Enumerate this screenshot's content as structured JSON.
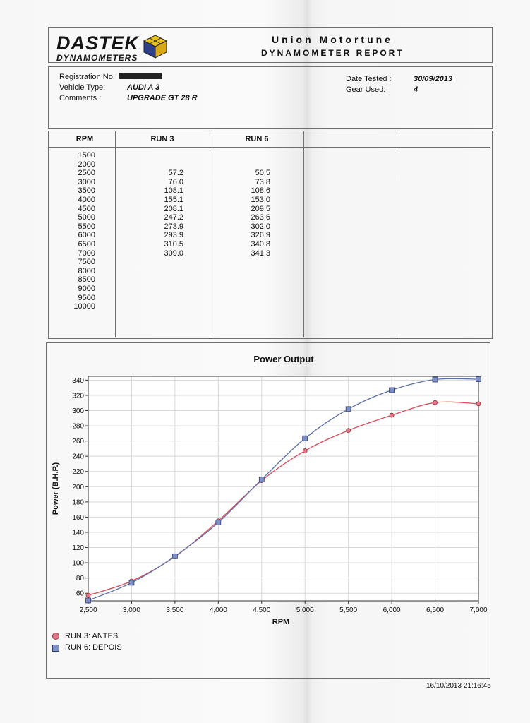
{
  "header": {
    "logo_main": "DASTEK",
    "logo_sub": "DYNAMOMETERS",
    "company": "Union Motortune",
    "report_title": "DYNAMOMETER REPORT"
  },
  "details": {
    "registration_label": "Registration No.",
    "vehicle_label": "Vehicle Type:",
    "vehicle_value": "AUDI A 3",
    "comments_label": "Comments :",
    "comments_value": "UPGRADE GT 28 R",
    "date_label": "Date Tested :",
    "date_value": "30/09/2013",
    "gear_label": "Gear Used:",
    "gear_value": "4"
  },
  "table": {
    "headers": [
      "RPM",
      "RUN 3",
      "RUN 6"
    ],
    "rpm": [
      "1500",
      "2000",
      "2500",
      "3000",
      "3500",
      "4000",
      "4500",
      "5000",
      "5500",
      "6000",
      "6500",
      "7000",
      "7500",
      "8000",
      "8500",
      "9000",
      "9500",
      "10000"
    ],
    "run3": [
      "",
      "",
      "57.2",
      "76.0",
      "108.1",
      "155.1",
      "208.1",
      "247.2",
      "273.9",
      "293.9",
      "310.5",
      "309.0",
      "",
      "",
      "",
      "",
      "",
      ""
    ],
    "run6": [
      "",
      "",
      "50.5",
      "73.8",
      "108.6",
      "153.0",
      "209.5",
      "263.6",
      "302.0",
      "326.9",
      "340.8",
      "341.3",
      "",
      "",
      "",
      "",
      "",
      ""
    ]
  },
  "chart_data": {
    "type": "line",
    "title": "Power Output",
    "xlabel": "RPM",
    "ylabel": "Power (B.H.P.)",
    "x": [
      2500,
      3000,
      3500,
      4000,
      4500,
      5000,
      5500,
      6000,
      6500,
      7000
    ],
    "xticks": [
      "2,500",
      "3,000",
      "3,500",
      "4,000",
      "4,500",
      "5,000",
      "5,500",
      "6,000",
      "6,500",
      "7,000"
    ],
    "yticks": [
      60,
      80,
      100,
      120,
      140,
      160,
      180,
      200,
      220,
      240,
      260,
      280,
      300,
      320,
      340
    ],
    "xlim": [
      2500,
      7000
    ],
    "ylim": [
      50,
      345
    ],
    "grid": true,
    "legend": "bottom-left",
    "series": [
      {
        "name": "RUN 3: ANTES",
        "marker": "circle",
        "color": "#d94a5a",
        "values": [
          57.2,
          76.0,
          108.1,
          155.1,
          208.1,
          247.2,
          273.9,
          293.9,
          310.5,
          309.0
        ]
      },
      {
        "name": "RUN 6: DEPOIS",
        "marker": "square",
        "color": "#5a6fa8",
        "values": [
          50.5,
          73.8,
          108.6,
          153.0,
          209.5,
          263.6,
          302.0,
          326.9,
          340.8,
          341.3
        ]
      }
    ]
  },
  "footer": {
    "timestamp": "16/10/2013 21:16:45"
  }
}
